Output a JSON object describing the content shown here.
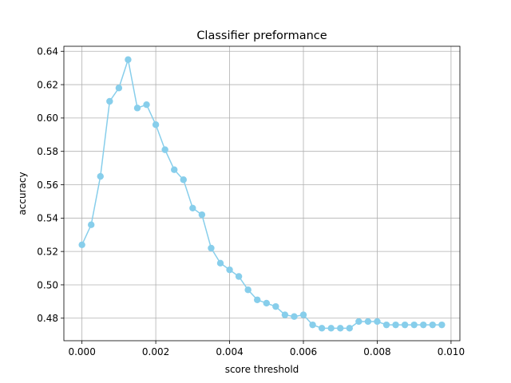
{
  "chart_data": {
    "type": "line",
    "title": "Classifier preformance",
    "xlabel": "score threshold",
    "ylabel": "accuracy",
    "xlim": [
      -0.00049,
      0.01024
    ],
    "ylim": [
      0.4665,
      0.643
    ],
    "x_ticks": [
      0.0,
      0.002,
      0.004,
      0.006,
      0.008,
      0.01
    ],
    "x_tick_labels": [
      "0.000",
      "0.002",
      "0.004",
      "0.006",
      "0.008",
      "0.010"
    ],
    "y_ticks": [
      0.48,
      0.5,
      0.52,
      0.54,
      0.56,
      0.58,
      0.6,
      0.62,
      0.64
    ],
    "y_tick_labels": [
      "0.48",
      "0.50",
      "0.52",
      "0.54",
      "0.56",
      "0.58",
      "0.60",
      "0.62",
      "0.64"
    ],
    "grid": true,
    "color": "#87CEEB",
    "series": [
      {
        "x": [
          0.0,
          0.00025,
          0.0005,
          0.00075,
          0.001,
          0.00125,
          0.0015,
          0.00175,
          0.002,
          0.00225,
          0.0025,
          0.00275,
          0.003,
          0.00325,
          0.0035,
          0.00375,
          0.004,
          0.00425,
          0.0045,
          0.00475,
          0.005,
          0.00525,
          0.0055,
          0.00575,
          0.006,
          0.00625,
          0.0065,
          0.00675,
          0.007,
          0.00725,
          0.0075,
          0.00775,
          0.008,
          0.00825,
          0.0085,
          0.00875,
          0.009,
          0.00925,
          0.0095,
          0.00975
        ],
        "values": [
          0.524,
          0.536,
          0.565,
          0.61,
          0.618,
          0.635,
          0.606,
          0.608,
          0.596,
          0.581,
          0.569,
          0.563,
          0.546,
          0.542,
          0.522,
          0.513,
          0.509,
          0.505,
          0.497,
          0.491,
          0.489,
          0.487,
          0.482,
          0.481,
          0.482,
          0.476,
          0.474,
          0.474,
          0.474,
          0.474,
          0.478,
          0.478,
          0.478,
          0.476,
          0.476,
          0.476,
          0.476,
          0.476,
          0.476,
          0.476
        ]
      }
    ]
  }
}
